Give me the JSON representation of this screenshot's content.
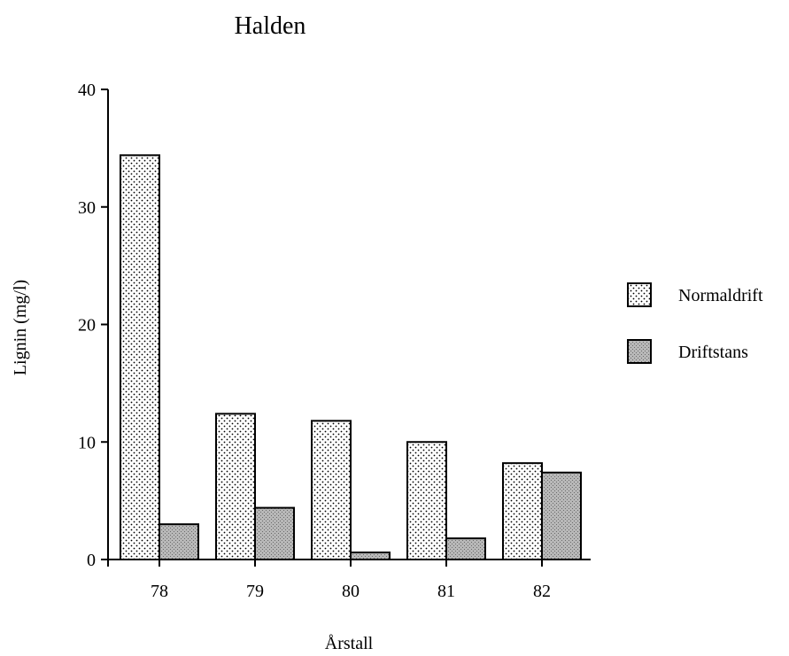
{
  "chart_data": {
    "type": "bar",
    "title": "Halden",
    "xlabel": "Årstall",
    "ylabel": "Lignin  (mg/l)",
    "categories": [
      "78",
      "79",
      "80",
      "81",
      "82"
    ],
    "series": [
      {
        "name": "Normaldrift",
        "values": [
          34.4,
          12.4,
          11.8,
          10.0,
          8.2
        ],
        "pattern": "dotted",
        "color": "#ffffff"
      },
      {
        "name": "Driftstans",
        "values": [
          3.0,
          4.4,
          0.6,
          1.8,
          7.4
        ],
        "pattern": "shaded",
        "color": "#b8b8b8"
      }
    ],
    "ylim": [
      0,
      40
    ],
    "yticks": [
      0,
      10,
      20,
      30,
      40
    ],
    "grid": false,
    "legend_position": "right"
  }
}
